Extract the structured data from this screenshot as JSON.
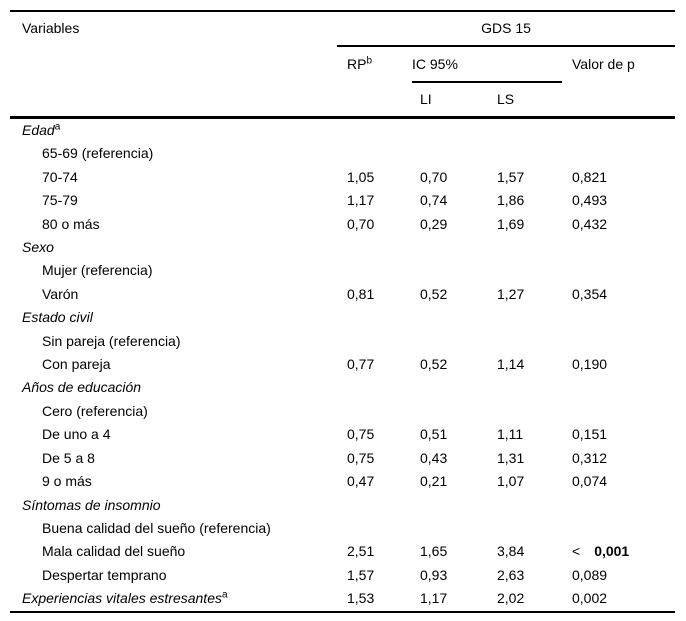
{
  "page": {
    "background_color": "#ffffff",
    "text_color": "#000000",
    "rule_color": "#000000"
  },
  "header": {
    "variables": "Variables",
    "group": "GDS 15",
    "rp": "RP",
    "rp_sup": "b",
    "ic": "IC 95%",
    "valor_p": "Valor de p",
    "li": "LI",
    "ls": "LS"
  },
  "table": {
    "rows": [
      {
        "type": "category",
        "label": "Edad",
        "sup": "a",
        "rp": "",
        "li": "",
        "ls": "",
        "p": ""
      },
      {
        "type": "item",
        "label": "65-69 (referencia)",
        "rp": "",
        "li": "",
        "ls": "",
        "p": ""
      },
      {
        "type": "item",
        "label": "70-74",
        "rp": "1,05",
        "li": "0,70",
        "ls": "1,57",
        "p": "0,821"
      },
      {
        "type": "item",
        "label": "75-79",
        "rp": "1,17",
        "li": "0,74",
        "ls": "1,86",
        "p": "0,493"
      },
      {
        "type": "item",
        "label": "80 o más",
        "rp": "0,70",
        "li": "0,29",
        "ls": "1,69",
        "p": "0,432"
      },
      {
        "type": "category",
        "label": "Sexo",
        "rp": "",
        "li": "",
        "ls": "",
        "p": ""
      },
      {
        "type": "item",
        "label": "Mujer (referencia)",
        "rp": "",
        "li": "",
        "ls": "",
        "p": ""
      },
      {
        "type": "item",
        "label": "Varón",
        "rp": "0,81",
        "li": "0,52",
        "ls": "1,27",
        "p": "0,354"
      },
      {
        "type": "category",
        "label": "Estado civil",
        "rp": "",
        "li": "",
        "ls": "",
        "p": ""
      },
      {
        "type": "item",
        "label": "Sin pareja (referencia)",
        "rp": "",
        "li": "",
        "ls": "",
        "p": ""
      },
      {
        "type": "item",
        "label": "Con pareja",
        "rp": "0,77",
        "li": "0,52",
        "ls": "1,14",
        "p": "0,190"
      },
      {
        "type": "category",
        "label": "Años de educación",
        "rp": "",
        "li": "",
        "ls": "",
        "p": ""
      },
      {
        "type": "item",
        "label": "Cero (referencia)",
        "rp": "",
        "li": "",
        "ls": "",
        "p": ""
      },
      {
        "type": "item",
        "label": "De uno a 4",
        "rp": "0,75",
        "li": "0,51",
        "ls": "1,11",
        "p": "0,151"
      },
      {
        "type": "item",
        "label": "De 5 a 8",
        "rp": "0,75",
        "li": "0,43",
        "ls": "1,31",
        "p": "0,312"
      },
      {
        "type": "item",
        "label": "9 o más",
        "rp": "0,47",
        "li": "0,21",
        "ls": "1,07",
        "p": "0,074"
      },
      {
        "type": "category",
        "label": "Síntomas de insomnio",
        "rp": "",
        "li": "",
        "ls": "",
        "p": ""
      },
      {
        "type": "item",
        "label": "Buena calidad del sueño (referencia)",
        "rp": "",
        "li": "",
        "ls": "",
        "p": ""
      },
      {
        "type": "item",
        "label": "Mala calidad del sueño",
        "rp": "2,51",
        "li": "1,65",
        "ls": "3,84",
        "p_lt": "<",
        "p_bold": "0,001"
      },
      {
        "type": "item",
        "label": "Despertar temprano",
        "rp": "1,57",
        "li": "0,93",
        "ls": "2,63",
        "p": "0,089"
      },
      {
        "type": "category",
        "label": "Experiencias vitales estresantes",
        "sup": "a",
        "rp": "1,53",
        "li": "1,17",
        "ls": "2,02",
        "p": "0,002"
      }
    ]
  }
}
